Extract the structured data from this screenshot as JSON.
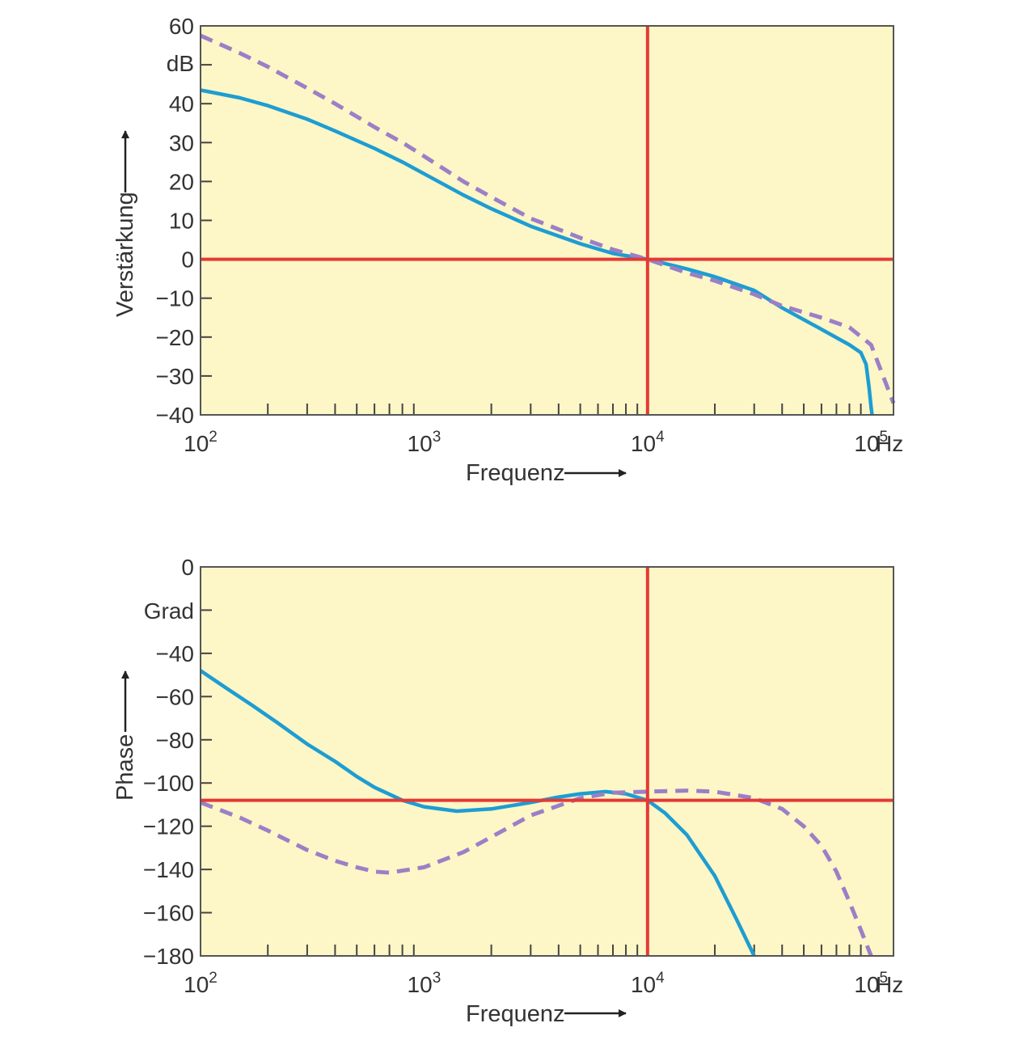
{
  "chart_data": [
    {
      "type": "line",
      "ylabel": "Verstärkung",
      "yunit": "dB",
      "xlabel": "Frequenz",
      "xunit": "Hz",
      "xscale": "log",
      "xlim": [
        100,
        126000
      ],
      "ylim": [
        -40,
        60
      ],
      "x_ticks": [
        {
          "mantissa": "10",
          "exp": "2"
        },
        {
          "mantissa": "10",
          "exp": "3"
        },
        {
          "mantissa": "10",
          "exp": "4"
        },
        {
          "mantissa": "10",
          "exp": "5"
        }
      ],
      "y_ticks": [
        "60",
        "40",
        "30",
        "20",
        "10",
        "0",
        "−10",
        "−20",
        "−30",
        "−40"
      ],
      "y_tick_values": [
        60,
        40,
        30,
        20,
        10,
        0,
        -10,
        -20,
        -30,
        -40
      ],
      "grid": false,
      "background_color": "#fdf6c6",
      "reference_lines": {
        "x": 10000,
        "y": 0,
        "color": "#e53935"
      },
      "series": [
        {
          "style": "solid",
          "color": "#1d9dd3",
          "x": [
            100,
            150,
            200,
            300,
            400,
            600,
            800,
            1000,
            1500,
            2000,
            3000,
            5000,
            7000,
            10000,
            15000,
            20000,
            30000,
            40000,
            60000,
            80000,
            90000,
            95000,
            98000,
            100000,
            101000
          ],
          "y": [
            43.5,
            41.5,
            39.5,
            36,
            33,
            28.5,
            25,
            22,
            16.5,
            13,
            8.5,
            4,
            1.5,
            0,
            -2.5,
            -4.5,
            -8,
            -12.5,
            -18,
            -22,
            -24,
            -27,
            -33,
            -38,
            -40
          ]
        },
        {
          "style": "dashed",
          "color": "#9b7fc7",
          "x": [
            100,
            150,
            200,
            300,
            400,
            600,
            800,
            1000,
            1500,
            2000,
            3000,
            5000,
            7000,
            10000,
            15000,
            20000,
            30000,
            40000,
            60000,
            80000,
            100000,
            126000
          ],
          "y": [
            57.5,
            53,
            49.5,
            44,
            40,
            34,
            30,
            26.5,
            20,
            16,
            10.5,
            5.5,
            2.5,
            0,
            -3.5,
            -5.5,
            -9,
            -12,
            -15,
            -17.5,
            -22,
            -37
          ]
        }
      ]
    },
    {
      "type": "line",
      "ylabel": "Phase",
      "yunit": "Grad",
      "xlabel": "Frequenz",
      "xunit": "Hz",
      "xscale": "log",
      "xlim": [
        100,
        126000
      ],
      "ylim": [
        -180,
        0
      ],
      "x_ticks": [
        {
          "mantissa": "10",
          "exp": "2"
        },
        {
          "mantissa": "10",
          "exp": "3"
        },
        {
          "mantissa": "10",
          "exp": "4"
        },
        {
          "mantissa": "10",
          "exp": "5"
        }
      ],
      "y_ticks": [
        "0",
        "−40",
        "−60",
        "−80",
        "−100",
        "−120",
        "−140",
        "−160",
        "−180"
      ],
      "y_tick_values": [
        0,
        -40,
        -60,
        -80,
        -100,
        -120,
        -140,
        -160,
        -180
      ],
      "unit_tick_value": -20,
      "grid": false,
      "background_color": "#fdf6c6",
      "reference_lines": {
        "x": 10000,
        "y": -108,
        "color": "#e53935"
      },
      "series": [
        {
          "style": "solid",
          "color": "#1d9dd3",
          "x": [
            100,
            130,
            170,
            220,
            300,
            400,
            500,
            600,
            800,
            1000,
            1400,
            2000,
            3000,
            4000,
            5000,
            6500,
            8000,
            10000,
            12000,
            15000,
            20000,
            25000,
            30000
          ],
          "y": [
            -48,
            -56,
            -64,
            -72,
            -82,
            -90,
            -97,
            -102,
            -108,
            -111,
            -113,
            -112,
            -109,
            -106.5,
            -105,
            -104,
            -105,
            -108,
            -114,
            -124,
            -143,
            -163,
            -180
          ]
        },
        {
          "style": "dashed",
          "color": "#9b7fc7",
          "x": [
            100,
            150,
            200,
            300,
            400,
            500,
            600,
            700,
            1000,
            1500,
            2000,
            3000,
            5000,
            7000,
            10000,
            15000,
            20000,
            30000,
            40000,
            50000,
            60000,
            70000,
            80000,
            90000,
            100000
          ],
          "y": [
            -109,
            -116,
            -122,
            -131,
            -136,
            -139,
            -141,
            -141.5,
            -139,
            -132,
            -125,
            -115,
            -107,
            -104.5,
            -104,
            -103.5,
            -104,
            -107,
            -112,
            -120,
            -129,
            -141,
            -155,
            -168,
            -180
          ]
        }
      ]
    }
  ]
}
